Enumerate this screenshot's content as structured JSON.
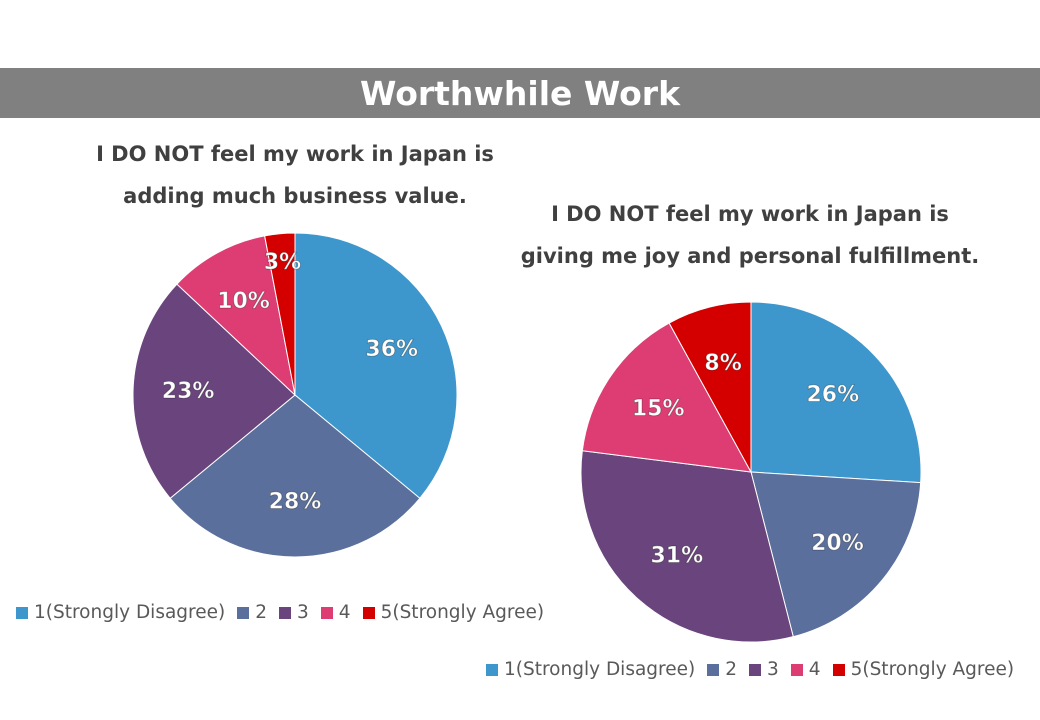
{
  "banner": {
    "title": "Worthwhile Work"
  },
  "chart_data": [
    {
      "type": "pie",
      "title_lines": [
        "I DO NOT feel my work in Japan is",
        "adding much business value."
      ],
      "categories": [
        "1(Strongly Disagree)",
        "2",
        "3",
        "4",
        "5(Strongly Agree)"
      ],
      "values": [
        36,
        28,
        23,
        10,
        3
      ],
      "data_labels": [
        "36%",
        "28%",
        "23%",
        "10%",
        "3%"
      ],
      "legend": "bottom"
    },
    {
      "type": "pie",
      "title_lines": [
        "I DO NOT feel my work in Japan is",
        "giving me joy and personal fulfillment."
      ],
      "categories": [
        "1(Strongly Disagree)",
        "2",
        "3",
        "4",
        "5(Strongly Agree)"
      ],
      "values": [
        26,
        20,
        31,
        15,
        8
      ],
      "data_labels": [
        "26%",
        "20%",
        "31%",
        "15%",
        "8%"
      ],
      "legend": "bottom"
    }
  ],
  "colors": [
    "#3d97cc",
    "#5a6f9c",
    "#6a447c",
    "#dd3d72",
    "#d40000"
  ]
}
